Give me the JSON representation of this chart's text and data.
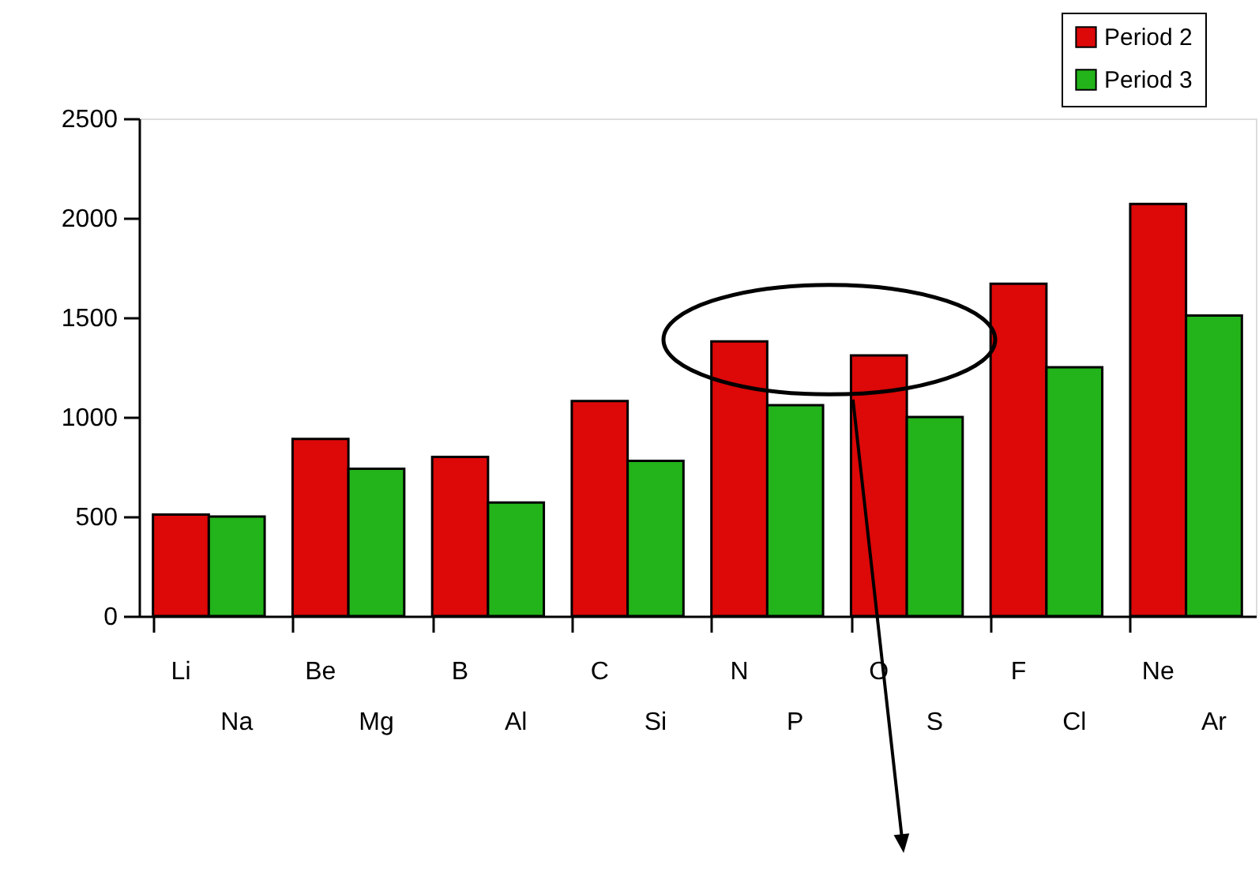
{
  "chart_data": {
    "type": "bar",
    "categories": [
      "Li Na",
      "Be Mg",
      "B Al",
      "C Si",
      "N P",
      "O S",
      "F Cl",
      "Ne Ar"
    ],
    "series": [
      {
        "name": "Period 2",
        "color": "#dd0808",
        "values": [
          510,
          890,
          800,
          1080,
          1380,
          1310,
          1670,
          2070
        ]
      },
      {
        "name": "Period 3",
        "color": "#22b41a",
        "values": [
          500,
          740,
          570,
          780,
          1060,
          1000,
          1250,
          1510
        ]
      }
    ],
    "ylim": [
      0,
      2500
    ],
    "yticks": [
      0,
      500,
      1000,
      1500,
      2000,
      2500
    ],
    "grid": false,
    "legend": "top right"
  }
}
